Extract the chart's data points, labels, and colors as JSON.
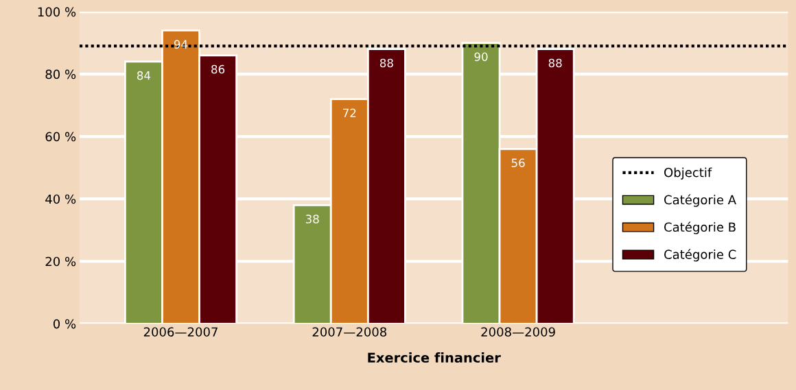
{
  "chart_data": {
    "type": "bar",
    "xlabel": "Exercice financier",
    "categories": [
      "2006—2007",
      "2007—2008",
      "2008—2009"
    ],
    "series": [
      {
        "name": "Catégorie A",
        "color": "#7f9640",
        "values": [
          84,
          38,
          90
        ]
      },
      {
        "name": "Catégorie B",
        "color": "#d0751c",
        "values": [
          94,
          72,
          56
        ]
      },
      {
        "name": "Catégorie C",
        "color": "#5c0008",
        "values": [
          86,
          88,
          88
        ]
      }
    ],
    "ylim": [
      0,
      100
    ],
    "yticks": [
      {
        "value": 0,
        "label": "0 %"
      },
      {
        "value": 20,
        "label": "20 %"
      },
      {
        "value": 40,
        "label": "40 %"
      },
      {
        "value": 60,
        "label": "60 %"
      },
      {
        "value": 80,
        "label": "80 %"
      },
      {
        "value": 100,
        "label": "100 %"
      }
    ],
    "ref_lines": [
      {
        "axis": "y",
        "value": 89,
        "label": "Objectif",
        "color": "#000000",
        "line_style": "dotted"
      }
    ],
    "data_labels": true,
    "grid": "y",
    "legend": "right"
  }
}
